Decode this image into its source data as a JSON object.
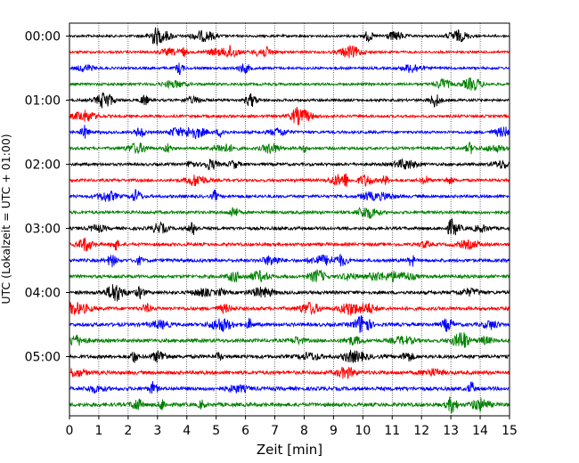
{
  "chart_data": {
    "type": "line",
    "title": "",
    "xlabel": "Zeit  [min]",
    "ylabel": "UTC (Lokalzeit = UTC + 01:00)",
    "xlim": [
      0,
      15
    ],
    "x_ticks": [
      "0",
      "1",
      "2",
      "3",
      "4",
      "5",
      "6",
      "7",
      "8",
      "9",
      "10",
      "11",
      "12",
      "13",
      "14",
      "15"
    ],
    "y_tick_labels": [
      "00:00",
      "01:00",
      "02:00",
      "03:00",
      "04:00",
      "05:00"
    ],
    "trace_count": 24,
    "trace_interval_min": 15,
    "trace_colors": [
      "#000000",
      "#ff0000",
      "#0000ff",
      "#008000"
    ],
    "grid": "vertical dotted at each minute",
    "legend": "none"
  }
}
